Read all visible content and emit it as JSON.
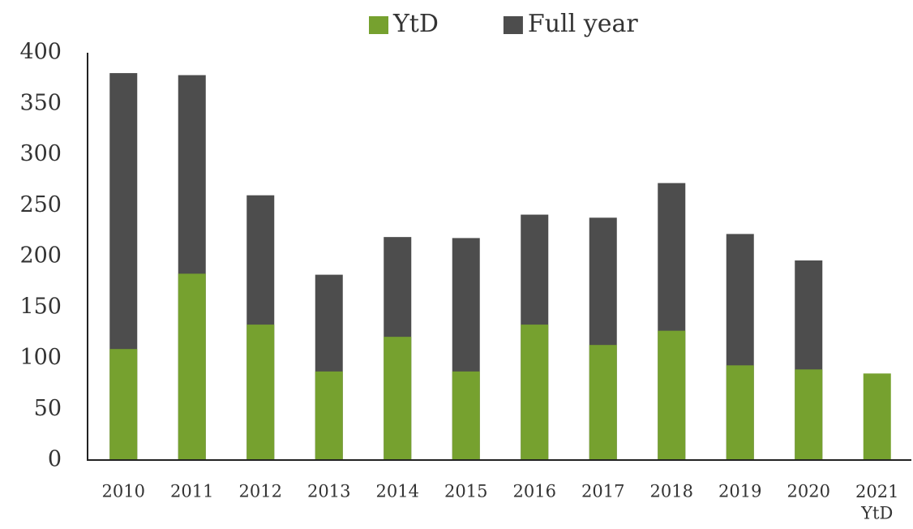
{
  "chart_data": {
    "type": "bar",
    "overlap": true,
    "categories": [
      "2010",
      "2011",
      "2012",
      "2013",
      "2014",
      "2015",
      "2016",
      "2017",
      "2018",
      "2019",
      "2020",
      "2021\nYtD"
    ],
    "series": [
      {
        "name": "YtD",
        "color": "#76a12f",
        "values": [
          109,
          183,
          133,
          87,
          121,
          87,
          133,
          113,
          127,
          93,
          89,
          85
        ]
      },
      {
        "name": "Full year",
        "color": "#4d4d4d",
        "values": [
          380,
          378,
          260,
          182,
          219,
          218,
          241,
          238,
          272,
          222,
          196,
          null
        ]
      }
    ],
    "ylim": [
      0,
      400
    ],
    "yticks": [
      0,
      50,
      100,
      150,
      200,
      250,
      300,
      350,
      400
    ],
    "grid": false,
    "legend": "top"
  }
}
